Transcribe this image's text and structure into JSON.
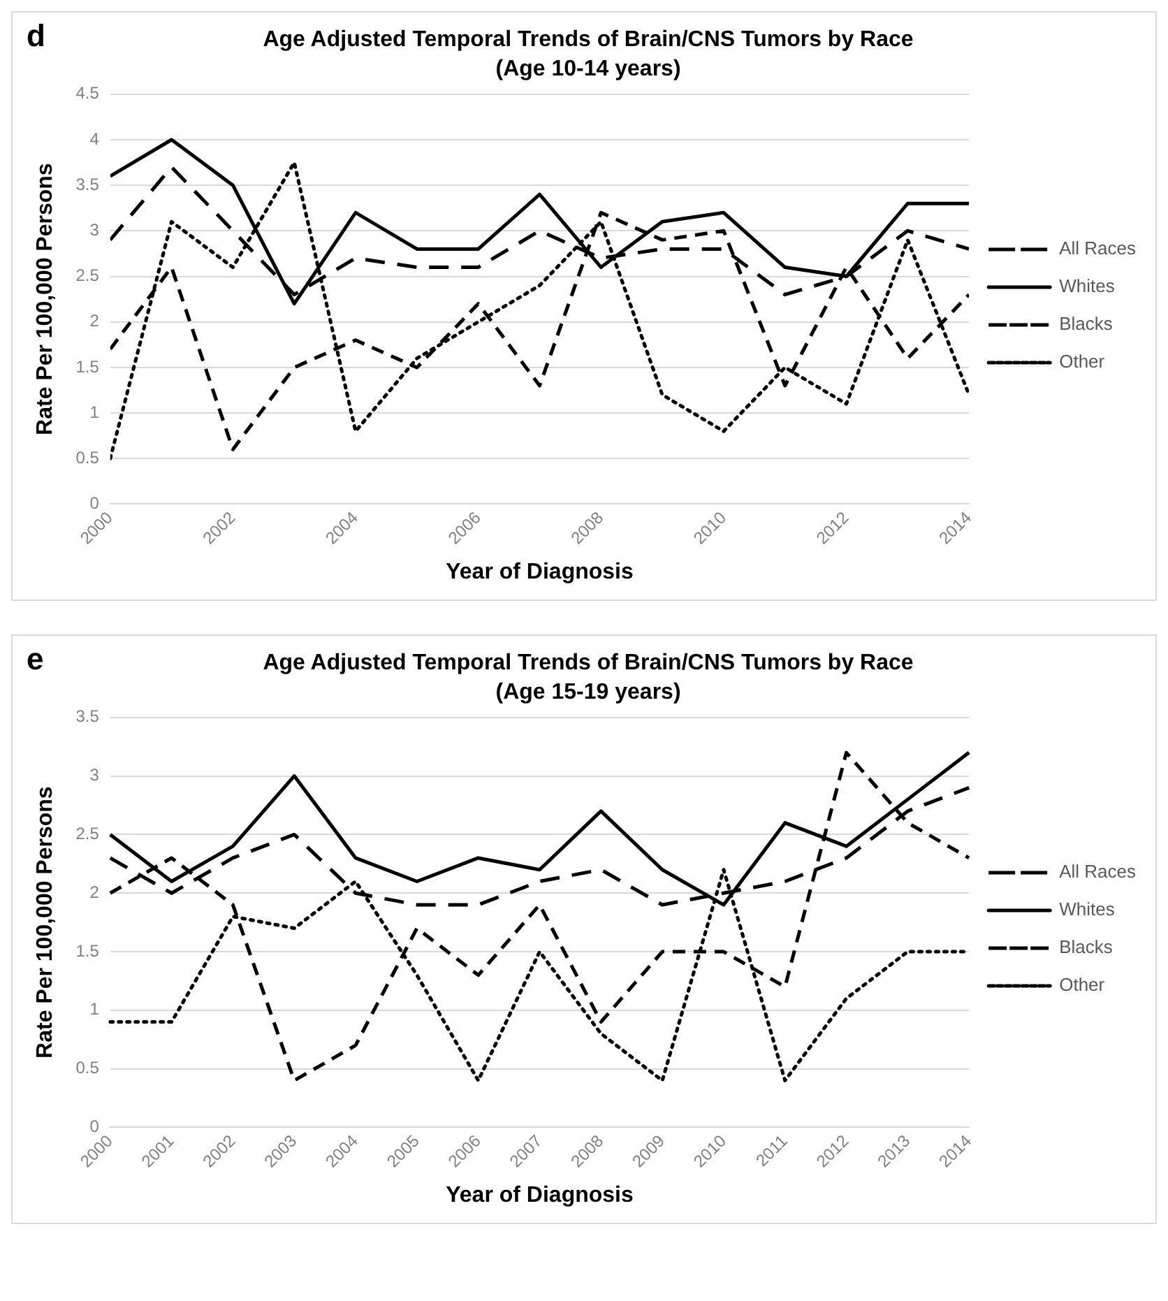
{
  "chart_data": [
    {
      "type": "line",
      "title": "Age Adjusted Temporal Trends of Brain/CNS Tumors by Race",
      "subtitle": "(Age 10-14 years)",
      "xlabel": "Year of Diagnosis",
      "ylabel": "Rate Per 100,000 Persons",
      "annotations": [
        "d"
      ],
      "x": [
        2000,
        2001,
        2002,
        2003,
        2004,
        2005,
        2006,
        2007,
        2008,
        2009,
        2010,
        2011,
        2012,
        2013,
        2014
      ],
      "xlim": [
        2000,
        2014
      ],
      "xticks": [
        2000,
        2002,
        2004,
        2006,
        2008,
        2010,
        2012,
        2014
      ],
      "ylim": [
        0,
        4.5
      ],
      "yticks": [
        0,
        0.5,
        1,
        1.5,
        2,
        2.5,
        3,
        3.5,
        4,
        4.5
      ],
      "grid": "y",
      "legend": "right",
      "marker": "none",
      "series": [
        {
          "name": "All Races",
          "color": "#000000",
          "line_style": "dashed",
          "values": [
            2.9,
            3.7,
            3.0,
            2.3,
            2.7,
            2.6,
            2.6,
            3.0,
            2.7,
            2.8,
            2.8,
            2.3,
            2.5,
            3.0,
            2.8
          ]
        },
        {
          "name": "Whites",
          "color": "#000000",
          "line_style": "solid",
          "values": [
            3.6,
            4.0,
            3.5,
            2.2,
            3.2,
            2.8,
            2.8,
            3.4,
            2.6,
            3.1,
            3.2,
            2.6,
            2.5,
            3.3,
            3.3
          ]
        },
        {
          "name": "Blacks",
          "color": "#000000",
          "line_style": "dashed",
          "values": [
            1.7,
            2.6,
            0.6,
            1.5,
            1.8,
            1.5,
            2.2,
            1.3,
            3.2,
            2.9,
            3.0,
            1.3,
            2.6,
            1.6,
            2.3
          ]
        },
        {
          "name": "Other",
          "color": "#000000",
          "line_style": "dotted",
          "values": [
            0.5,
            3.1,
            2.6,
            3.75,
            0.8,
            1.6,
            2.0,
            2.4,
            3.1,
            1.2,
            0.8,
            1.5,
            1.1,
            2.9,
            1.2
          ]
        }
      ]
    },
    {
      "type": "line",
      "title": "Age Adjusted Temporal Trends of Brain/CNS Tumors by Race",
      "subtitle": "(Age 15-19 years)",
      "xlabel": "Year of Diagnosis",
      "ylabel": "Rate Per 100,000 Persons",
      "annotations": [
        "e"
      ],
      "categories": [
        "2000",
        "2001",
        "2002",
        "2003",
        "2004",
        "2005",
        "2006",
        "2007",
        "2008",
        "2009",
        "2010",
        "2011",
        "2012",
        "2013",
        "2014"
      ],
      "ylim": [
        0,
        3.5
      ],
      "yticks": [
        0,
        0.5,
        1,
        1.5,
        2,
        2.5,
        3,
        3.5
      ],
      "grid": "y",
      "legend": "right",
      "marker": "none",
      "series": [
        {
          "name": "All Races",
          "color": "#000000",
          "line_style": "dashed",
          "values": [
            2.3,
            2.0,
            2.3,
            2.5,
            2.0,
            1.9,
            1.9,
            2.1,
            2.2,
            1.9,
            2.0,
            2.1,
            2.3,
            2.7,
            2.9
          ]
        },
        {
          "name": "Whites",
          "color": "#000000",
          "line_style": "solid",
          "values": [
            2.5,
            2.1,
            2.4,
            3.0,
            2.3,
            2.1,
            2.3,
            2.2,
            2.7,
            2.2,
            1.9,
            2.6,
            2.4,
            2.8,
            3.2
          ]
        },
        {
          "name": "Blacks",
          "color": "#000000",
          "line_style": "dashed",
          "values": [
            2.0,
            2.3,
            1.9,
            0.4,
            0.7,
            1.7,
            1.3,
            1.9,
            0.9,
            1.5,
            1.5,
            1.2,
            3.2,
            2.6,
            2.3
          ]
        },
        {
          "name": "Other",
          "color": "#000000",
          "line_style": "dotted",
          "values": [
            0.9,
            0.9,
            1.8,
            1.7,
            2.1,
            1.3,
            0.4,
            1.5,
            0.8,
            0.4,
            2.2,
            0.4,
            1.1,
            1.5,
            1.5
          ]
        }
      ]
    }
  ]
}
